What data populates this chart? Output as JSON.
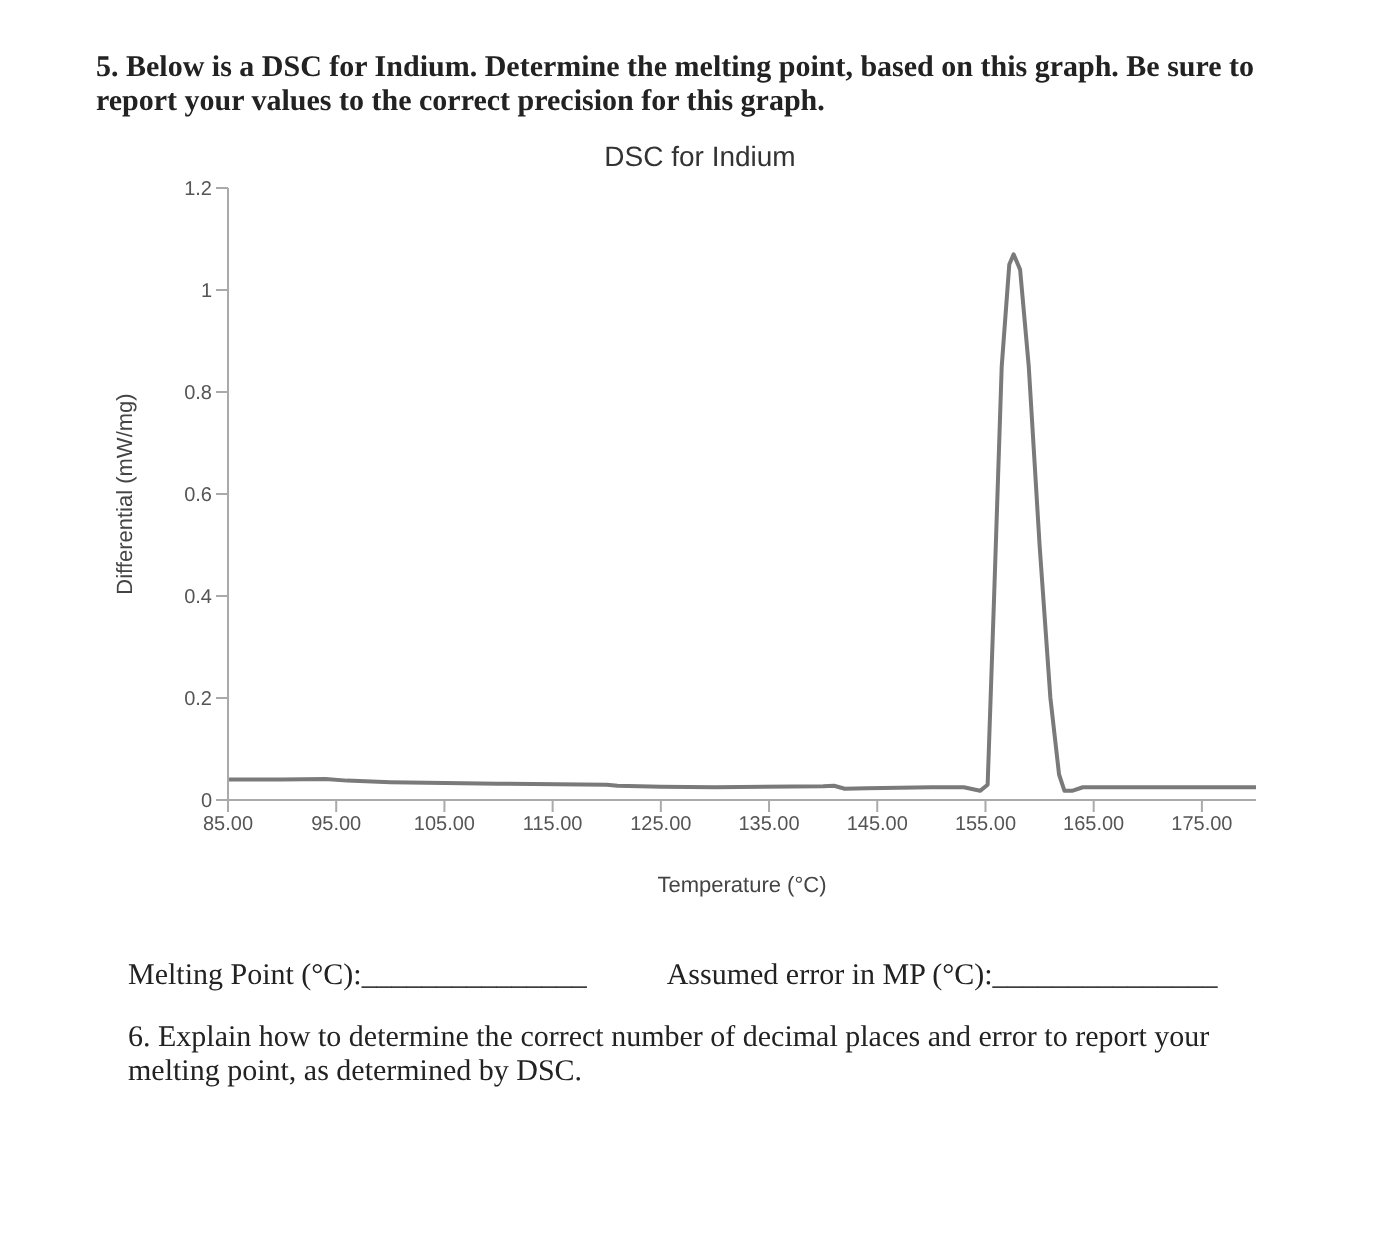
{
  "chart_data": {
    "type": "line",
    "title": "DSC for Indium",
    "xlabel": "Temperature (°C)",
    "ylabel": "Differential (mW/mg)",
    "annotations": [
      "5. Below is a DSC for Indium. Determine the melting point, based on this graph. Be sure to report your values to the correct precision for this graph.",
      "Melting Point (°C):_______________",
      "Assumed error in MP (°C):_______________",
      "6. Explain how to determine the correct number of decimal places and error to report your melting point, as determined by DSC."
    ],
    "x": [
      85,
      90,
      94,
      96,
      100,
      110,
      120,
      121,
      125,
      130,
      140,
      141,
      142,
      144,
      150,
      153,
      154.5,
      155.2,
      155.8,
      156.5,
      157.2,
      157.6,
      158.2,
      159,
      160,
      161,
      161.8,
      162.3,
      163,
      164,
      170,
      180
    ],
    "series": [
      {
        "color": "#7a7a7a",
        "values": [
          0.04,
          0.04,
          0.041,
          0.038,
          0.035,
          0.032,
          0.03,
          0.028,
          0.026,
          0.025,
          0.027,
          0.028,
          0.022,
          0.023,
          0.025,
          0.025,
          0.018,
          0.03,
          0.4,
          0.85,
          1.05,
          1.07,
          1.04,
          0.85,
          0.5,
          0.2,
          0.05,
          0.018,
          0.018,
          0.025,
          0.025,
          0.025
        ]
      }
    ],
    "xlim": [
      85,
      180
    ],
    "xticks": [
      {
        "value": 85,
        "label": "85.00"
      },
      {
        "value": 95,
        "label": "95.00"
      },
      {
        "value": 105,
        "label": "105.00"
      },
      {
        "value": 115,
        "label": "115.00"
      },
      {
        "value": 125,
        "label": "125.00"
      },
      {
        "value": 135,
        "label": "135.00"
      },
      {
        "value": 145,
        "label": "145.00"
      },
      {
        "value": 155,
        "label": "155.00"
      },
      {
        "value": 165,
        "label": "165.00"
      },
      {
        "value": 175,
        "label": "175.00"
      }
    ],
    "ylim": [
      0,
      1.2
    ],
    "yticks": [
      0,
      0.2,
      0.4,
      0.6,
      0.8,
      1,
      1.2
    ],
    "grid": false,
    "marker": "none",
    "line_style": "solid"
  }
}
